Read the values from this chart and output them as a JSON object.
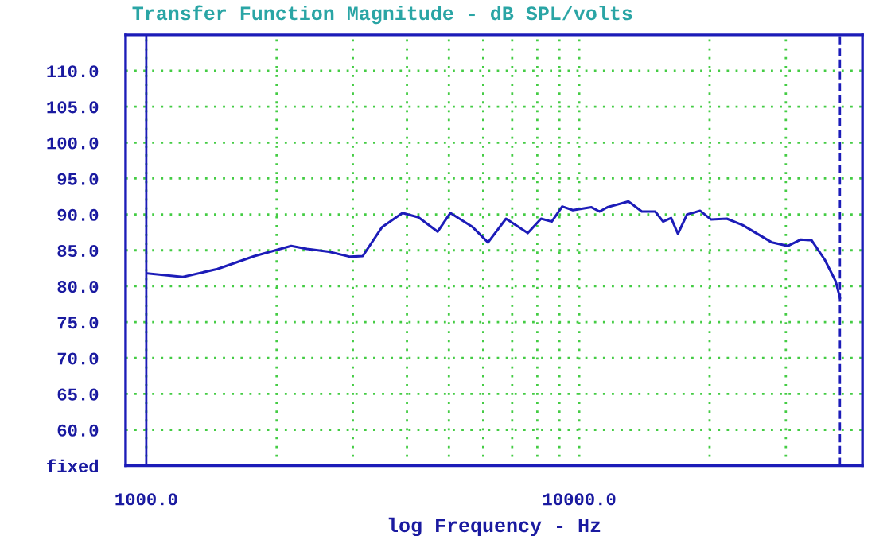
{
  "chart_data": {
    "type": "line",
    "title": "Transfer Function Magnitude - dB SPL/volts",
    "xlabel": "log Frequency - Hz",
    "log": "x",
    "xlim": [
      896,
      45100
    ],
    "ylim": [
      55,
      115
    ],
    "xticks": [
      {
        "value": 1000,
        "label": "1000.0"
      },
      {
        "value": 2000,
        "label": null
      },
      {
        "value": 3000,
        "label": null
      },
      {
        "value": 4000,
        "label": null
      },
      {
        "value": 5000,
        "label": null
      },
      {
        "value": 6000,
        "label": null
      },
      {
        "value": 7000,
        "label": null
      },
      {
        "value": 8000,
        "label": null
      },
      {
        "value": 9000,
        "label": null
      },
      {
        "value": 10000,
        "label": "10000.0"
      },
      {
        "value": 20000,
        "label": null
      },
      {
        "value": 30000,
        "label": null
      }
    ],
    "yticks": [
      {
        "value": 55,
        "label": "fixed"
      },
      {
        "value": 60,
        "label": "60.0"
      },
      {
        "value": 65,
        "label": "65.0"
      },
      {
        "value": 70,
        "label": "70.0"
      },
      {
        "value": 75,
        "label": "75.0"
      },
      {
        "value": 80,
        "label": "80.0"
      },
      {
        "value": 85,
        "label": "85.0"
      },
      {
        "value": 90,
        "label": "90.0"
      },
      {
        "value": 95,
        "label": "95.0"
      },
      {
        "value": 100,
        "label": "100.0"
      },
      {
        "value": 105,
        "label": "105.0"
      },
      {
        "value": 110,
        "label": "110.0"
      }
    ],
    "grid": true,
    "line_style": "solid",
    "ref_lines": [
      {
        "axis": "x",
        "value": 1000,
        "label": null,
        "color": "#1c1cb8",
        "line_style": "solid"
      },
      {
        "axis": "x",
        "value": 40000,
        "label": null,
        "color": "#1c1cb8",
        "line_style": "dashed"
      }
    ],
    "series": [
      {
        "color": "#1c1cb8",
        "x": [
          1003,
          1215,
          1460,
          1778,
          2161,
          2351,
          2641,
          2955,
          3162,
          3501,
          3907,
          4253,
          4708,
          5037,
          5656,
          6156,
          6774,
          7606,
          8163,
          8639,
          9135,
          9667,
          10670,
          11140,
          11620,
          13000,
          13950,
          14980,
          15620,
          16300,
          16900,
          17740,
          19030,
          20140,
          21920,
          23860,
          27860,
          30300,
          32500,
          34400,
          36900,
          39100,
          40000
        ],
        "values": [
          81.8,
          81.3,
          82.4,
          84.2,
          85.6,
          85.2,
          84.8,
          84.1,
          84.2,
          88.2,
          90.2,
          89.6,
          87.6,
          90.2,
          88.3,
          86.1,
          89.4,
          87.4,
          89.4,
          89.0,
          91.1,
          90.6,
          91.0,
          90.4,
          91.0,
          91.8,
          90.4,
          90.4,
          89.0,
          89.5,
          87.3,
          90.0,
          90.5,
          89.3,
          89.4,
          88.5,
          86.1,
          85.6,
          86.5,
          86.4,
          83.7,
          80.7,
          78.4
        ]
      }
    ]
  }
}
